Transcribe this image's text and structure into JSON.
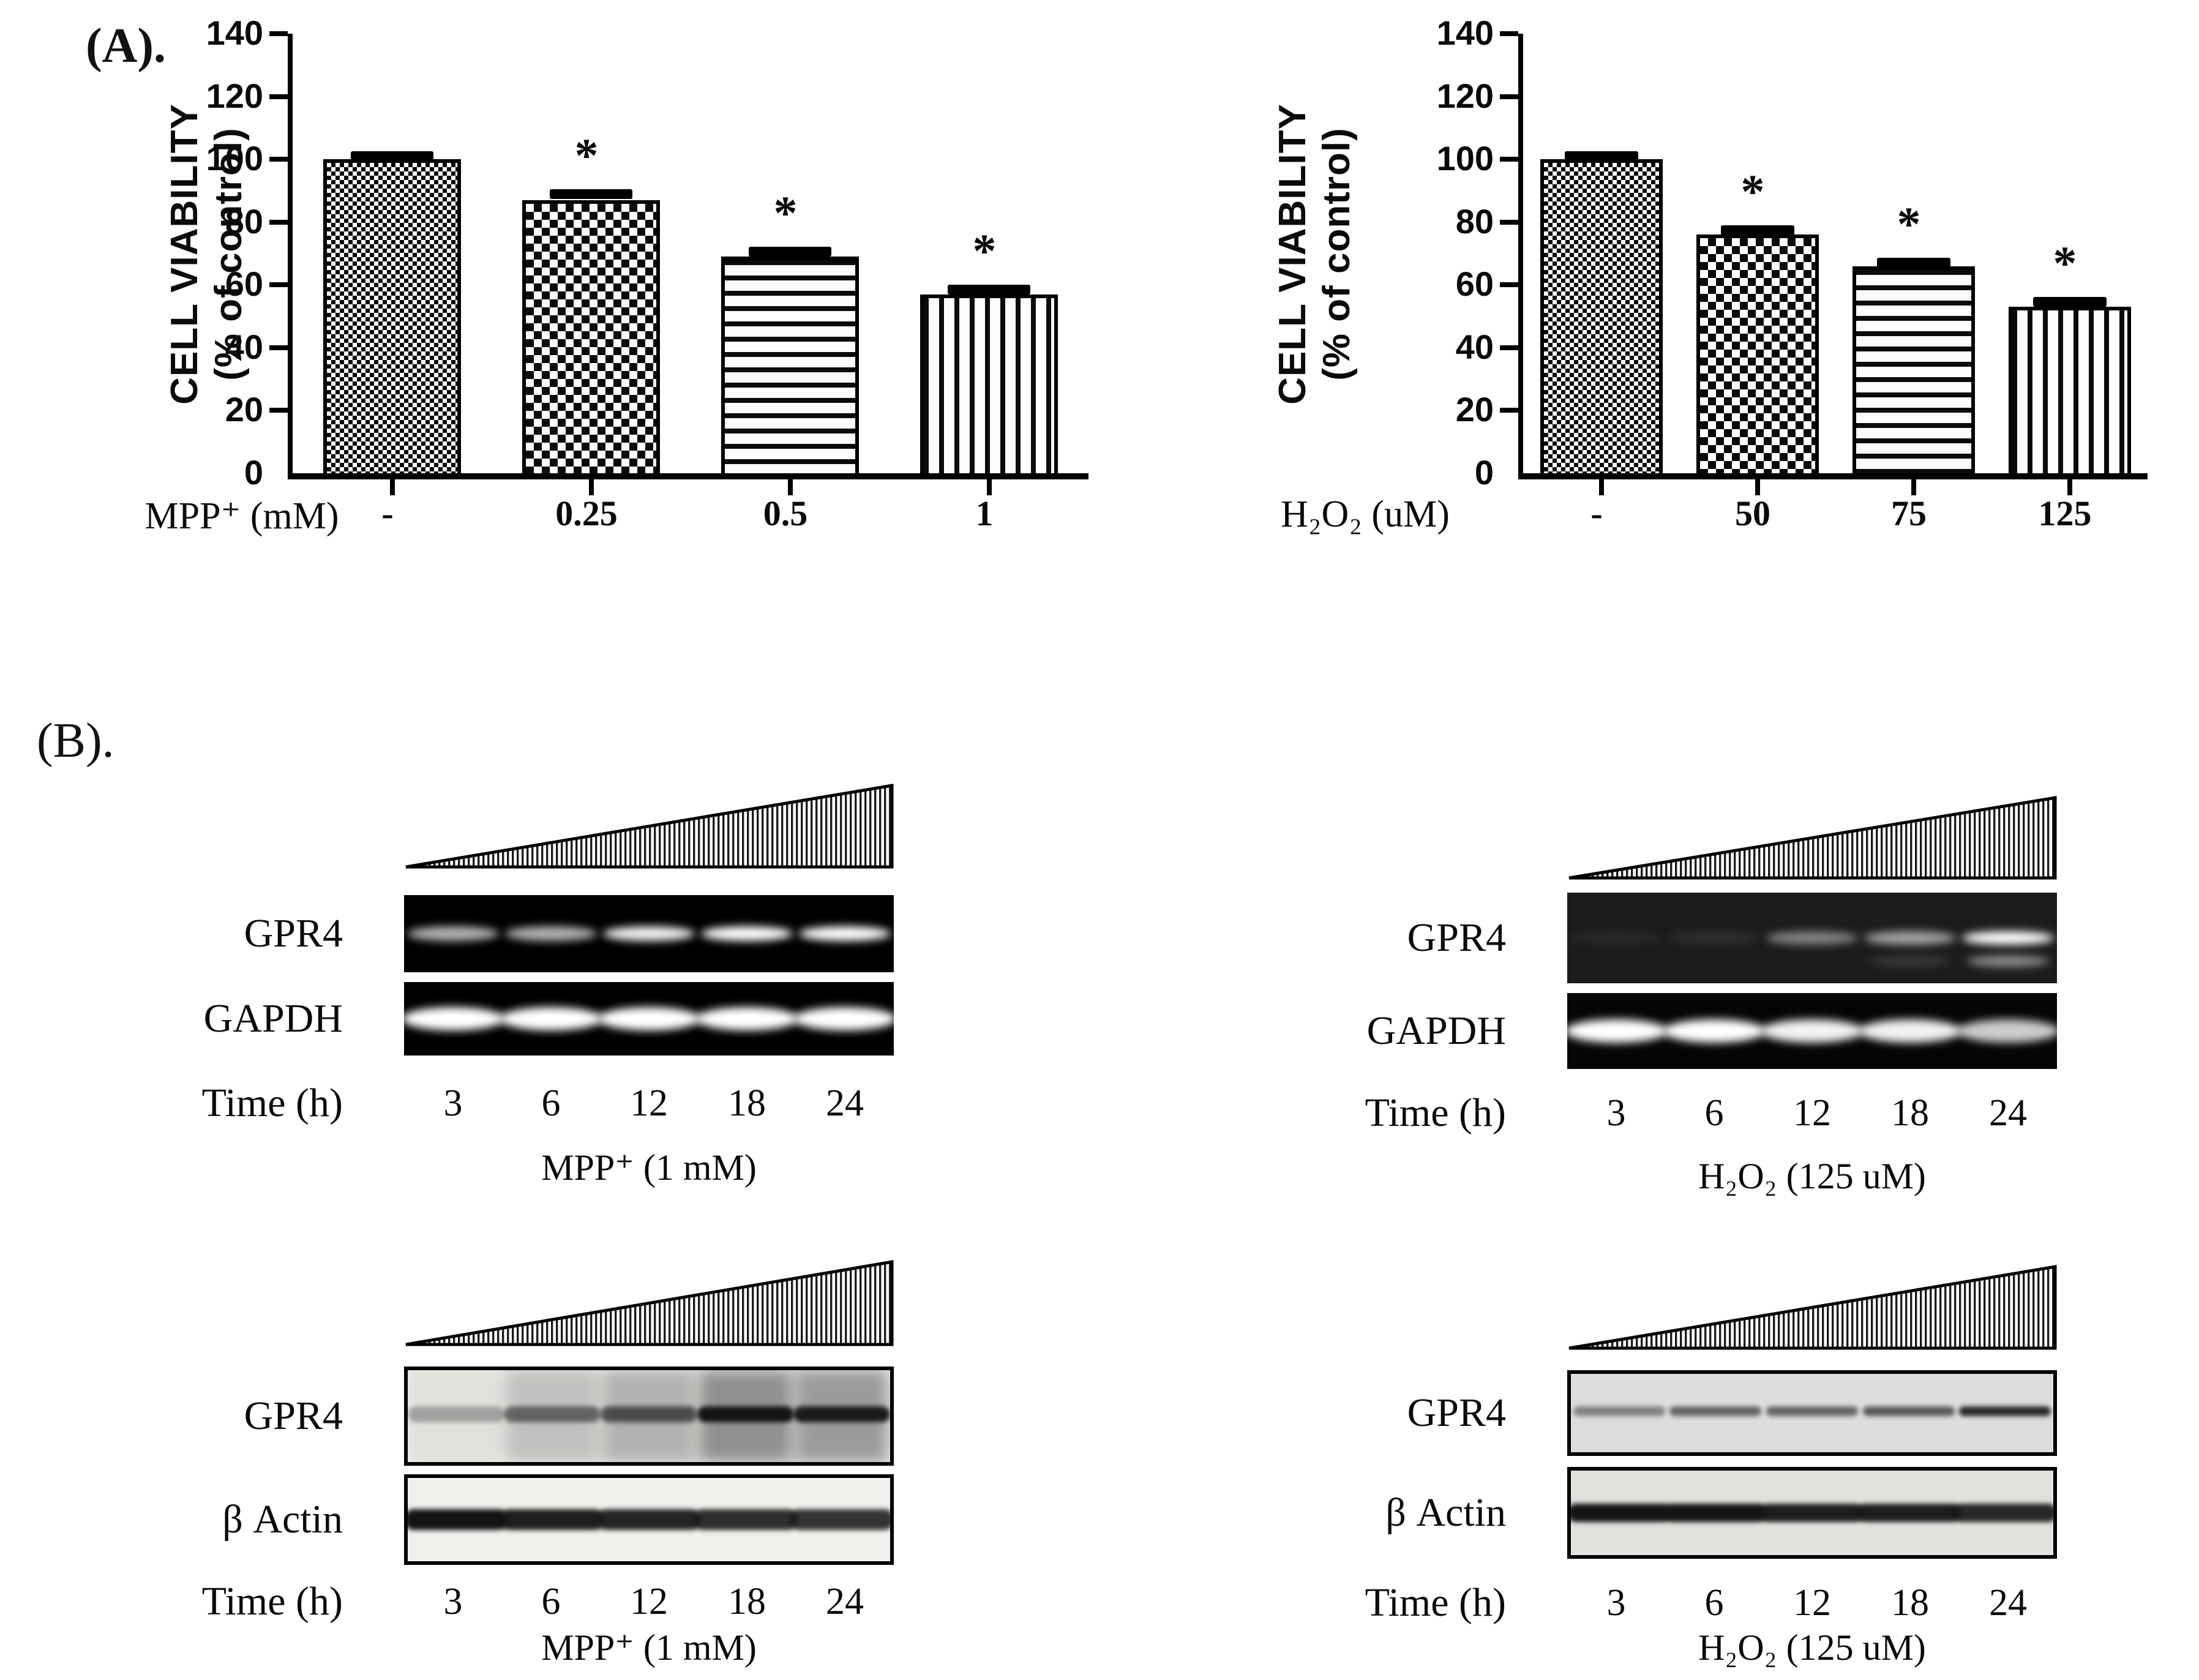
{
  "panel_a": {
    "label": "(A)."
  },
  "panel_b": {
    "label": "(B).",
    "groups": [
      {
        "treatment": "MPP⁺ (1 mM)",
        "time_label": "Time (h)",
        "timepoints": [
          "3",
          "6",
          "12",
          "18",
          "24"
        ],
        "rows": [
          {
            "label": "GPR4",
            "style": "pcr",
            "bg": "#000000",
            "band_w": 150,
            "band_h": 24,
            "intensities": [
              0.7,
              0.7,
              0.95,
              1,
              1
            ]
          },
          {
            "label": "GAPDH",
            "style": "pcr",
            "bg": "#000000",
            "band_w": 168,
            "band_h": 38,
            "intensities": [
              1,
              1,
              1,
              1,
              1
            ]
          }
        ]
      },
      {
        "treatment": "H₂O₂ (125 uM)",
        "time_label": "Time (h)",
        "timepoints": [
          "3",
          "6",
          "12",
          "18",
          "24"
        ],
        "rows": [
          {
            "label": "GPR4",
            "style": "pcr",
            "bg": "#1c1c1c",
            "band_w": 150,
            "band_h": 22,
            "intensities": [
              0.05,
              0.08,
              0.45,
              0.6,
              1
            ],
            "sub_intensities": [
              0,
              0,
              0,
              0.12,
              0.5
            ]
          },
          {
            "label": "GAPDH",
            "style": "pcr",
            "bg": "#050505",
            "band_w": 168,
            "band_h": 38,
            "intensities": [
              1,
              1,
              0.95,
              0.95,
              0.8
            ]
          }
        ]
      },
      {
        "treatment": "MPP⁺ (1 mM)",
        "time_label": "Time (h)",
        "timepoints": [
          "3",
          "6",
          "12",
          "18",
          "24"
        ],
        "rows": [
          {
            "label": "GPR4",
            "style": "wb",
            "bg": "#eceae7",
            "band_w": 158,
            "band_h": 26,
            "intensities": [
              0.3,
              0.55,
              0.65,
              1,
              0.95
            ],
            "smudges": [
              0.05,
              0.22,
              0.3,
              0.48,
              0.42
            ]
          },
          {
            "label": "β Actin",
            "style": "wb",
            "bg": "#f1efec",
            "band_w": 168,
            "band_h": 34,
            "intensities": [
              1,
              0.95,
              0.92,
              0.88,
              0.85
            ]
          }
        ]
      },
      {
        "treatment": "H₂O₂ (125 uM)",
        "time_label": "Time (h)",
        "timepoints": [
          "3",
          "6",
          "12",
          "18",
          "24"
        ],
        "rows": [
          {
            "label": "GPR4",
            "style": "wb",
            "bg": "#dddddb",
            "band_w": 150,
            "band_h": 16,
            "intensities": [
              0.45,
              0.6,
              0.6,
              0.65,
              0.9
            ]
          },
          {
            "label": "β Actin",
            "style": "wb",
            "bg": "#e3e1de",
            "band_w": 170,
            "band_h": 30,
            "intensities": [
              1,
              1,
              0.95,
              0.95,
              0.9
            ]
          }
        ]
      }
    ]
  },
  "chart_data": [
    {
      "type": "bar",
      "title": "",
      "ylabel": "CELL VIABILITY (% of control)",
      "ylabel_lines": [
        "CELL VIABILITY",
        "(% of control)"
      ],
      "xlabel": "MPP⁺ (mM)",
      "categories": [
        "-",
        "0.25",
        "0.5",
        "1"
      ],
      "values": [
        100,
        87,
        69,
        57
      ],
      "errors": [
        1,
        2,
        1.5,
        1.5
      ],
      "significance": [
        "",
        "*",
        "*",
        "*"
      ],
      "ylim": [
        0,
        140
      ],
      "yticks": [
        0,
        20,
        40,
        60,
        80,
        100,
        120,
        140
      ],
      "grid": false,
      "legend": "none",
      "bar_patterns": [
        "fine-checker",
        "coarse-checker",
        "horizontal-stripes",
        "vertical-stripes"
      ]
    },
    {
      "type": "bar",
      "title": "",
      "ylabel": "CELL VIABILITY (% of control)",
      "ylabel_lines": [
        "CELL VIABILITY",
        "(% of control)"
      ],
      "xlabel": "H₂O₂ (uM)",
      "categories": [
        "-",
        "50",
        "75",
        "125"
      ],
      "values": [
        100,
        76,
        66,
        53
      ],
      "errors": [
        1,
        1.5,
        1,
        1.5
      ],
      "significance": [
        "",
        "*",
        "*",
        "*"
      ],
      "ylim": [
        0,
        140
      ],
      "yticks": [
        0,
        20,
        40,
        60,
        80,
        100,
        120,
        140
      ],
      "grid": false,
      "legend": "none",
      "bar_patterns": [
        "fine-checker",
        "coarse-checker",
        "horizontal-stripes",
        "vertical-stripes"
      ]
    }
  ]
}
